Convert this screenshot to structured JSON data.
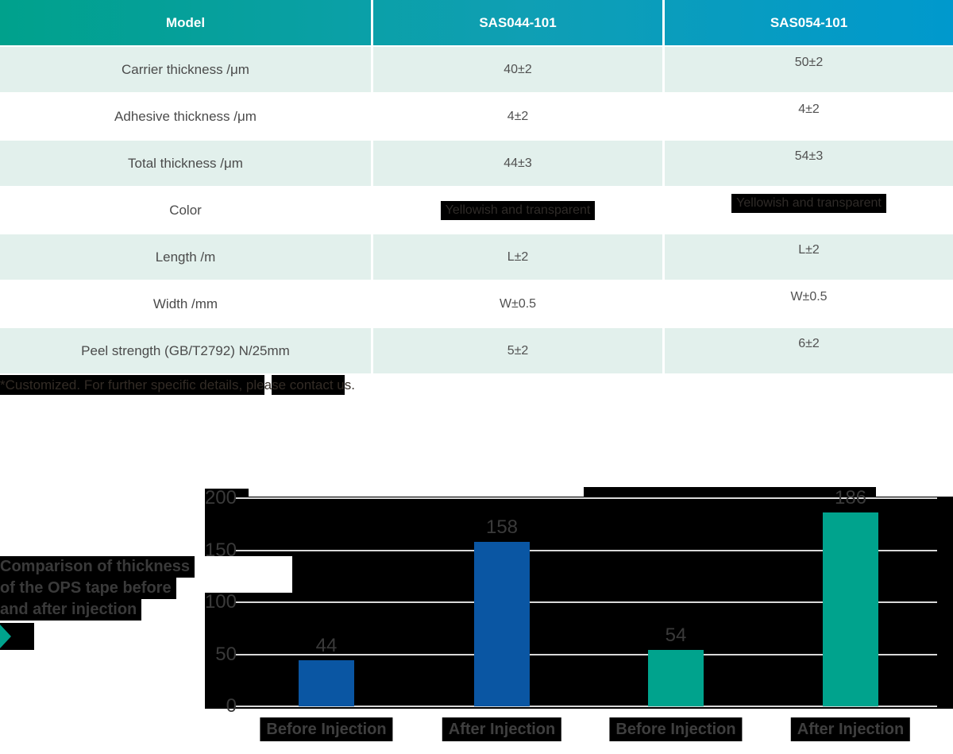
{
  "table": {
    "header": [
      "Model",
      "SAS044-101",
      "SAS054-101"
    ],
    "rows": [
      {
        "label": "Carrier thickness /μm",
        "v1": "40±2",
        "v2": "50±2",
        "highlight": false
      },
      {
        "label": "Adhesive thickness /μm",
        "v1": "4±2",
        "v2": "4±2",
        "highlight": false
      },
      {
        "label": "Total thickness /μm",
        "v1": "44±3",
        "v2": "54±3",
        "highlight": false
      },
      {
        "label": "Color",
        "v1": "Yellowish and transparent",
        "v2": "Yellowish and transparent",
        "highlight": true
      },
      {
        "label": "Length /m",
        "v1": "L±2",
        "v2": "L±2",
        "highlight": false
      },
      {
        "label": "Width /mm",
        "v1": "W±0.5",
        "v2": "W±0.5",
        "highlight": false
      },
      {
        "label": "Peel strength (GB/T2792) N/25mm",
        "v1": "5±2",
        "v2": "6±2",
        "highlight": false
      }
    ]
  },
  "note": {
    "segments": [
      {
        "text": "*Customized. For further specific details, ple",
        "hl": true
      },
      {
        "text": "a",
        "hl": false
      },
      {
        "text": "se contact u",
        "hl": true
      },
      {
        "text": "s.",
        "hl": false
      }
    ]
  },
  "chart_data": {
    "type": "bar",
    "title": "Comparison of thickness of the OPS tape before and after injection",
    "title_lines": [
      "Comparison of thickness",
      "of the OPS tape before",
      "and after injection"
    ],
    "categories": [
      "Before Injection",
      "After Injection",
      "Before Injection",
      "After Injection"
    ],
    "values": [
      44,
      158,
      54,
      186
    ],
    "series": [
      {
        "name": "SAS044-101",
        "color": "#0a56a3",
        "values": [
          44,
          158
        ]
      },
      {
        "name": "SAS054-101",
        "color": "#00a38d",
        "values": [
          54,
          186
        ]
      }
    ],
    "bar_colors": [
      "#0a56a3",
      "#0a56a3",
      "#00a38d",
      "#00a38d"
    ],
    "xlabel": "",
    "ylabel": "",
    "ylim": [
      0,
      200
    ],
    "yticks": [
      0,
      50,
      100,
      150,
      200
    ],
    "grid": true,
    "legend": "none",
    "plot_background": "#000000"
  },
  "colors": {
    "header_gradient_start": "#00a18c",
    "header_gradient_end": "#0099cd",
    "row_alt_background": "#e2f0ec",
    "bar_blue": "#0a56a3",
    "bar_teal": "#00a38d",
    "gridline": "#d9d9d9",
    "artifact_black": "#000000",
    "chart_text": "#3a3a3a",
    "table_text": "#4b4b4b"
  },
  "icons": {
    "play_triangle_color": "#00a38d"
  }
}
